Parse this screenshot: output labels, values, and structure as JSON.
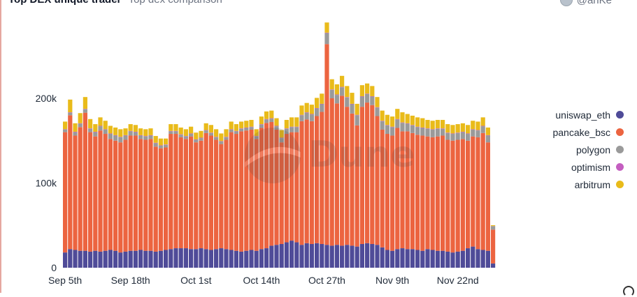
{
  "header": {
    "title": "Top DEX unique trader",
    "subtitle": "Top dex comparison",
    "user": "@anKe"
  },
  "watermark": {
    "text": "Dune"
  },
  "legend": [
    {
      "name": "uniswap_eth",
      "color": "#4f4b98"
    },
    {
      "name": "pancake_bsc",
      "color": "#ec6440"
    },
    {
      "name": "polygon",
      "color": "#9a9a9a"
    },
    {
      "name": "optimism",
      "color": "#c45ec0"
    },
    {
      "name": "arbitrum",
      "color": "#e9bb1a"
    }
  ],
  "chart_data": {
    "type": "bar",
    "stacked": true,
    "x_start": "2022-09-05",
    "x_tick_labels": [
      "Sep 5th",
      "Sep 18th",
      "Oct 1st",
      "Oct 14th",
      "Oct 27th",
      "Nov 9th",
      "Nov 22nd"
    ],
    "y_tick_labels": [
      "0",
      "100k",
      "200k"
    ],
    "ylim": [
      0,
      290000
    ],
    "grid": false,
    "legend_position": "right",
    "series": [
      {
        "name": "uniswap_eth",
        "color": "#4f4b98",
        "values": [
          18000,
          22000,
          21000,
          20000,
          20000,
          19000,
          20000,
          19000,
          20000,
          21000,
          20000,
          18000,
          19000,
          20000,
          20000,
          21000,
          20000,
          20000,
          19000,
          20000,
          21000,
          22000,
          23000,
          23000,
          23000,
          22000,
          22000,
          23000,
          22000,
          21000,
          22000,
          23000,
          22000,
          21000,
          20000,
          19000,
          20000,
          21000,
          20000,
          22000,
          23000,
          26000,
          27000,
          28000,
          30000,
          32000,
          30000,
          27000,
          29000,
          28000,
          29000,
          28000,
          27000,
          26000,
          27000,
          26000,
          27000,
          26000,
          25000,
          28000,
          29000,
          28000,
          27000,
          24000,
          21000,
          20000,
          22000,
          23000,
          22000,
          22000,
          21000,
          20000,
          22000,
          21000,
          20000,
          20000,
          19000,
          18000,
          19000,
          20000,
          23000,
          25000,
          22000,
          21000,
          20000,
          5000
        ]
      },
      {
        "name": "pancake_bsc",
        "color": "#ec6440",
        "values": [
          142000,
          158000,
          135000,
          146000,
          163000,
          141000,
          135000,
          143000,
          138000,
          131000,
          130000,
          130000,
          132000,
          136000,
          136000,
          131000,
          131000,
          132000,
          124000,
          121000,
          121000,
          136000,
          135000,
          131000,
          129000,
          133000,
          126000,
          127000,
          137000,
          135000,
          129000,
          123000,
          129000,
          139000,
          138000,
          142000,
          142000,
          142000,
          132000,
          143000,
          148000,
          146000,
          136000,
          120000,
          128000,
          128000,
          130000,
          146000,
          146000,
          145000,
          150000,
          156000,
          237000,
          174000,
          167000,
          177000,
          163000,
          156000,
          143000,
          162000,
          166000,
          164000,
          152000,
          139000,
          137000,
          136000,
          143000,
          138000,
          139000,
          137000,
          136000,
          136000,
          133000,
          133000,
          135000,
          136000,
          132000,
          132000,
          132000,
          132000,
          127000,
          130000,
          132000,
          138000,
          128000,
          40000
        ]
      },
      {
        "name": "polygon",
        "color": "#9a9a9a",
        "values": [
          3000,
          3000,
          4000,
          4000,
          4000,
          4000,
          5000,
          5000,
          5000,
          6000,
          6000,
          6000,
          5000,
          5000,
          4000,
          4000,
          4000,
          4000,
          4000,
          3000,
          3000,
          3000,
          3000,
          3000,
          3000,
          3000,
          3000,
          3000,
          3000,
          3000,
          3000,
          3000,
          3000,
          3000,
          3000,
          3000,
          3000,
          3000,
          3000,
          4000,
          4000,
          4000,
          4000,
          5000,
          6000,
          6000,
          6000,
          7000,
          8000,
          8000,
          9000,
          9000,
          13000,
          10000,
          10000,
          10000,
          11000,
          11000,
          12000,
          12000,
          10000,
          10000,
          10000,
          10000,
          10000,
          10000,
          10000,
          10000,
          9000,
          9000,
          9000,
          9000,
          9000,
          9000,
          9000,
          8000,
          8000,
          8000,
          8000,
          8000,
          8000,
          8000,
          8000,
          8000,
          8000,
          4000
        ]
      },
      {
        "name": "optimism",
        "color": "#c45ec0",
        "values": [
          500,
          500,
          500,
          500,
          500,
          500,
          500,
          500,
          500,
          500,
          500,
          500,
          500,
          500,
          500,
          500,
          500,
          500,
          500,
          500,
          500,
          500,
          500,
          500,
          500,
          500,
          500,
          500,
          500,
          500,
          500,
          500,
          500,
          500,
          500,
          500,
          500,
          500,
          500,
          500,
          500,
          500,
          500,
          500,
          500,
          500,
          500,
          500,
          500,
          500,
          500,
          500,
          500,
          500,
          500,
          500,
          500,
          500,
          500,
          500,
          500,
          500,
          500,
          500,
          500,
          500,
          500,
          500,
          500,
          500,
          500,
          500,
          500,
          500,
          500,
          500,
          500,
          500,
          500,
          500,
          500,
          500,
          500,
          500,
          500,
          200
        ]
      },
      {
        "name": "arbitrum",
        "color": "#e9bb1a",
        "values": [
          9000,
          15000,
          10000,
          12000,
          14000,
          11000,
          9000,
          10000,
          10000,
          9000,
          9000,
          9000,
          8000,
          8000,
          8000,
          8000,
          8000,
          8000,
          8000,
          8000,
          7000,
          8000,
          8000,
          8000,
          8000,
          8000,
          8000,
          8000,
          8000,
          9000,
          9000,
          9000,
          9000,
          9000,
          8000,
          8000,
          8000,
          8000,
          8000,
          9000,
          9000,
          9000,
          9000,
          9000,
          10000,
          11000,
          11000,
          11000,
          11000,
          11000,
          12000,
          12000,
          12000,
          12000,
          12000,
          13000,
          13000,
          13000,
          13000,
          13000,
          12000,
          12000,
          12000,
          12000,
          12000,
          12000,
          12000,
          12000,
          11000,
          11000,
          11000,
          11000,
          10000,
          10000,
          10000,
          10000,
          10000,
          10000,
          10000,
          10000,
          10000,
          10000,
          10000,
          10000,
          9000,
          1000
        ]
      }
    ]
  }
}
